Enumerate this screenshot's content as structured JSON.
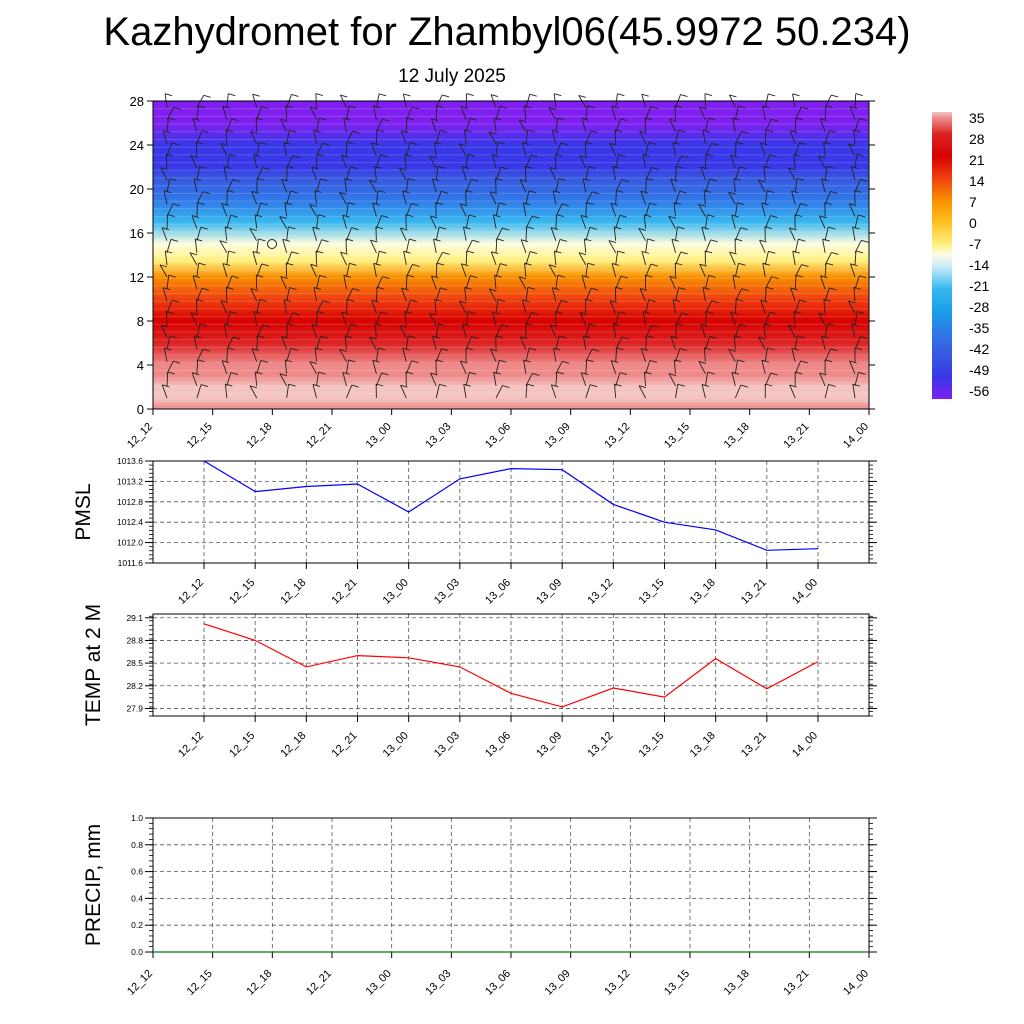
{
  "title": "Kazhydromet for Zhambyl06(45.9972 50.234)",
  "subtitle": "12 July 2025",
  "time_labels": [
    "12_12",
    "12_15",
    "12_18",
    "12_21",
    "13_00",
    "13_03",
    "13_06",
    "13_09",
    "13_12",
    "13_15",
    "13_18",
    "13_21",
    "14_00"
  ],
  "chart_data": [
    {
      "type": "heatmap",
      "title": "",
      "ylabel": "",
      "x": [
        "12_12",
        "12_15",
        "12_18",
        "12_21",
        "13_00",
        "13_03",
        "13_06",
        "13_09",
        "13_12",
        "13_15",
        "13_18",
        "13_21",
        "14_00"
      ],
      "ylim": [
        0,
        28
      ],
      "yticks": [
        0,
        4,
        8,
        12,
        16,
        20,
        24,
        28
      ],
      "colorbar": {
        "labels": [
          "35",
          "28",
          "21",
          "14",
          "7",
          "0",
          "-7",
          "-14",
          "-21",
          "-28",
          "-35",
          "-42",
          "-49",
          "-56"
        ],
        "stops": [
          {
            "value": 35,
            "color": "#f4c4c4"
          },
          {
            "value": 33,
            "color": "#ee8a8a"
          },
          {
            "value": 28,
            "color": "#dd2222"
          },
          {
            "value": 21,
            "color": "#d80000"
          },
          {
            "value": 14,
            "color": "#f04010"
          },
          {
            "value": 7,
            "color": "#f89000"
          },
          {
            "value": 0,
            "color": "#ffc020"
          },
          {
            "value": -7,
            "color": "#fff080"
          },
          {
            "value": -10,
            "color": "#fffde0"
          },
          {
            "value": -14,
            "color": "#c8ecf8"
          },
          {
            "value": -21,
            "color": "#38b8f0"
          },
          {
            "value": -28,
            "color": "#1aa0e8"
          },
          {
            "value": -35,
            "color": "#3078e8"
          },
          {
            "value": -42,
            "color": "#3858e0"
          },
          {
            "value": -49,
            "color": "#3838e8"
          },
          {
            "value": -56,
            "color": "#8020f0"
          }
        ]
      },
      "temperature_profile": [
        {
          "height": 0,
          "value": 30
        },
        {
          "height": 1,
          "value": 33
        },
        {
          "height": 2,
          "value": 34
        },
        {
          "height": 3,
          "value": 32
        },
        {
          "height": 4,
          "value": 29
        },
        {
          "height": 6,
          "value": 24
        },
        {
          "height": 8,
          "value": 19
        },
        {
          "height": 10,
          "value": 10
        },
        {
          "height": 12,
          "value": 0
        },
        {
          "height": 13.5,
          "value": -8
        },
        {
          "height": 15,
          "value": -14
        },
        {
          "height": 17,
          "value": -26
        },
        {
          "height": 19,
          "value": -36
        },
        {
          "height": 21,
          "value": -48
        },
        {
          "height": 22,
          "value": -50
        },
        {
          "height": 24,
          "value": -55
        },
        {
          "height": 26,
          "value": -58
        },
        {
          "height": 28,
          "value": -58
        }
      ],
      "wind_barbs": "wind barbs at every level"
    },
    {
      "type": "line",
      "ylabel": "PMSL",
      "x": [
        "12_12",
        "12_15",
        "12_18",
        "12_21",
        "13_00",
        "13_03",
        "13_06",
        "13_09",
        "13_12",
        "13_15",
        "13_18",
        "13_21",
        "14_00"
      ],
      "ylim": [
        1011.6,
        1013.6
      ],
      "yticks": [
        "1011.6",
        "1012.0",
        "1012.4",
        "1012.8",
        "1013.2",
        "1013.6"
      ],
      "series": [
        {
          "values": [
            1013.6,
            1013.0,
            1013.1,
            1013.15,
            1012.6,
            1013.25,
            1013.45,
            1013.43,
            1012.75,
            1012.4,
            1012.25,
            1011.85,
            1011.88
          ],
          "color": "#0000ff"
        }
      ]
    },
    {
      "type": "line",
      "ylabel": "TEMP at 2 M",
      "x": [
        "12_12",
        "12_15",
        "12_18",
        "12_21",
        "13_00",
        "13_03",
        "13_06",
        "13_09",
        "13_12",
        "13_15",
        "13_18",
        "13_21",
        "14_00"
      ],
      "ylim": [
        27.8,
        29.15
      ],
      "yticks": [
        "27.9",
        "28.2",
        "28.5",
        "28.8",
        "29.1"
      ],
      "series": [
        {
          "values": [
            29.02,
            28.8,
            28.45,
            28.6,
            28.57,
            28.45,
            28.1,
            27.92,
            28.17,
            28.05,
            28.56,
            28.16,
            28.52
          ],
          "color": "#ff0000"
        }
      ]
    },
    {
      "type": "line",
      "ylabel": "PRECIP, mm",
      "x": [
        "12_12",
        "12_15",
        "12_18",
        "12_21",
        "13_00",
        "13_03",
        "13_06",
        "13_09",
        "13_12",
        "13_15",
        "13_18",
        "13_21",
        "14_00"
      ],
      "ylim": [
        0,
        1
      ],
      "yticks": [
        "0.0",
        "0.2",
        "0.4",
        "0.6",
        "0.8",
        "1.0"
      ],
      "series": [
        {
          "values": [
            0,
            0,
            0,
            0,
            0,
            0,
            0,
            0,
            0,
            0,
            0,
            0,
            0
          ],
          "color": "#008000"
        }
      ]
    }
  ]
}
